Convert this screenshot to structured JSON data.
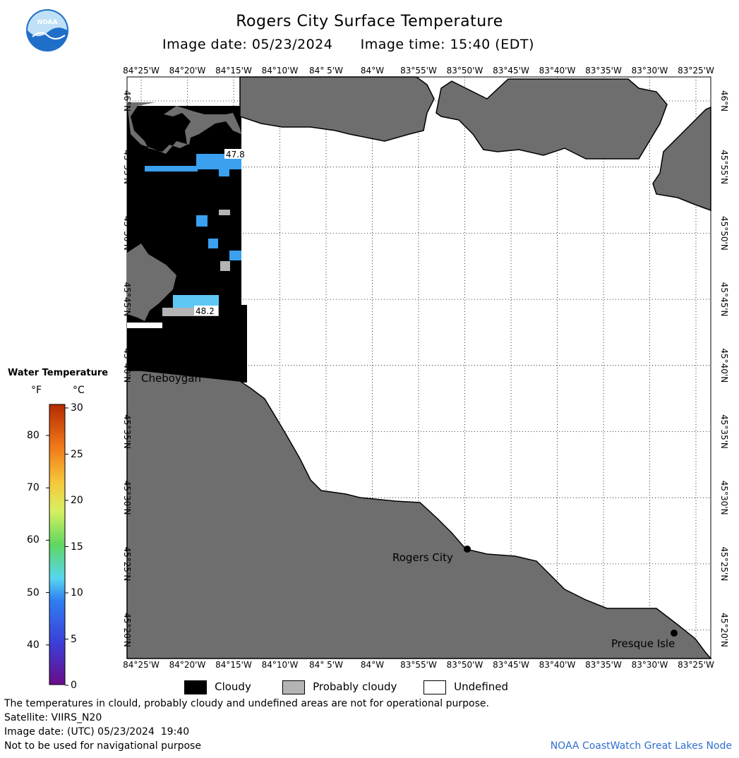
{
  "header": {
    "title": "Rogers City Surface Temperature",
    "image_date_label": "Image date: 05/23/2024",
    "image_time_label": "Image time: 15:40 (EDT)"
  },
  "logo": {
    "text": "NOAA",
    "colors": {
      "outer": "#1f6fc9",
      "inner": "#bfe0f7"
    }
  },
  "axes": {
    "x_ticks": [
      "84°25'W",
      "84°20'W",
      "84°15'W",
      "84°10'W",
      "84° 5'W",
      "84°W",
      "83°55'W",
      "83°50'W",
      "83°45'W",
      "83°40'W",
      "83°35'W",
      "83°30'W",
      "83°25'W"
    ],
    "y_ticks": [
      "46°N",
      "45°55'N",
      "45°50'N",
      "45°45'N",
      "45°40'N",
      "45°35'N",
      "45°30'N",
      "45°25'N",
      "45°20'N"
    ]
  },
  "map": {
    "colors": {
      "land": "#6e6e6e",
      "cloudy": "#000000",
      "probably_cloudy": "#b4b4b4",
      "undefined": "#ffffff",
      "water_cold": "#3aa0ef",
      "water_light": "#5ec8f5"
    },
    "temperature_labels": [
      "47.8",
      "48.2"
    ],
    "places": [
      "Cheboygan",
      "Rogers City",
      "Presque Isle"
    ]
  },
  "colorbar": {
    "title": "Water Temperature",
    "unit_f": "°F",
    "unit_c": "°C",
    "f_ticks": [
      "80",
      "70",
      "60",
      "50",
      "40"
    ],
    "c_ticks": [
      "30",
      "25",
      "20",
      "15",
      "10",
      "5",
      "0"
    ]
  },
  "legend": {
    "cloudy": "Cloudy",
    "probably_cloudy": "Probably cloudy",
    "undefined": "Undefined"
  },
  "footer": {
    "disclaimer": "The temperatures in clould, probably cloudy and undefined areas are not for operational purpose.",
    "satellite": "Satellite: VIIRS_N20",
    "image_date_utc": "Image date: (UTC) 05/23/2024  19:40",
    "nav_warning": "Not to be used for navigational purpose",
    "credit": "NOAA CoastWatch Great Lakes Node"
  }
}
